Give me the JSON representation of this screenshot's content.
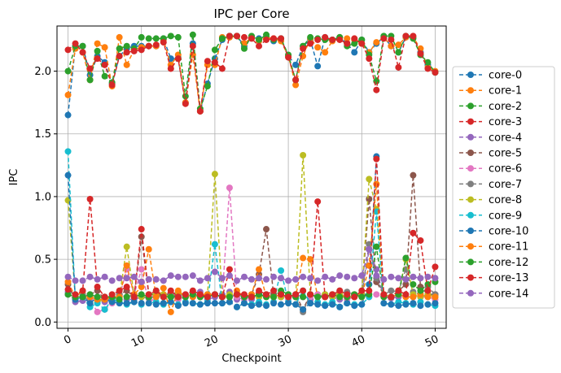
{
  "chart_data": {
    "type": "line",
    "title": "IPC per Core",
    "xlabel": "Checkpoint",
    "ylabel": "IPC",
    "xlim": [
      -1.5,
      51.5
    ],
    "ylim": [
      -0.05,
      2.36
    ],
    "xticks": [
      0,
      10,
      20,
      30,
      40,
      50
    ],
    "yticks": [
      0.0,
      0.5,
      1.0,
      1.5,
      2.0
    ],
    "x_tick_rotation_deg": 25,
    "grid": true,
    "legend_position": "outside-right",
    "marker": "circle",
    "line_style": "dashed",
    "x": [
      0,
      1,
      2,
      3,
      4,
      5,
      6,
      7,
      8,
      9,
      10,
      11,
      12,
      13,
      14,
      15,
      16,
      17,
      18,
      19,
      20,
      21,
      22,
      23,
      24,
      25,
      26,
      27,
      28,
      29,
      30,
      31,
      32,
      33,
      34,
      35,
      36,
      37,
      38,
      39,
      40,
      41,
      42,
      43,
      44,
      45,
      46,
      47,
      48,
      49,
      50
    ],
    "series": [
      {
        "name": "core-0",
        "color": "#1f77b4",
        "values": [
          1.65,
          2.2,
          2.2,
          1.97,
          2.12,
          2.07,
          1.9,
          2.12,
          2.18,
          2.2,
          2.2,
          2.2,
          2.2,
          2.26,
          2.1,
          2.1,
          1.75,
          2.22,
          1.68,
          1.9,
          2.1,
          2.25,
          2.28,
          2.28,
          2.2,
          2.27,
          2.26,
          2.27,
          2.24,
          2.26,
          2.12,
          2.05,
          2.2,
          2.25,
          2.04,
          2.27,
          2.25,
          2.27,
          2.22,
          2.15,
          2.25,
          2.15,
          2.22,
          2.27,
          2.2,
          2.15,
          2.27,
          2.27,
          2.15,
          2.05,
          1.99
        ]
      },
      {
        "name": "core-1",
        "color": "#ff7f0e",
        "values": [
          1.81,
          2.18,
          2.15,
          1.93,
          2.22,
          2.19,
          1.88,
          2.27,
          2.05,
          2.17,
          2.19,
          2.2,
          2.2,
          2.25,
          2.05,
          2.13,
          1.75,
          2.13,
          1.68,
          2.05,
          2.05,
          2.27,
          2.27,
          2.28,
          2.22,
          2.27,
          2.24,
          2.27,
          2.26,
          2.24,
          2.12,
          1.89,
          2.12,
          2.26,
          2.19,
          2.15,
          2.24,
          2.27,
          2.26,
          2.25,
          2.22,
          2.15,
          2.23,
          2.27,
          2.2,
          2.21,
          2.27,
          2.27,
          2.18,
          2.03,
          2.0
        ]
      },
      {
        "name": "core-2",
        "color": "#2ca02c",
        "values": [
          2.0,
          2.2,
          2.2,
          1.93,
          2.16,
          1.96,
          1.91,
          2.18,
          2.2,
          2.18,
          2.27,
          2.26,
          2.26,
          2.26,
          2.28,
          2.27,
          1.8,
          2.29,
          1.7,
          1.88,
          2.17,
          2.26,
          2.28,
          2.28,
          2.18,
          2.28,
          2.25,
          2.29,
          2.25,
          2.26,
          2.13,
          1.93,
          2.2,
          2.27,
          2.26,
          2.25,
          2.25,
          2.27,
          2.2,
          2.22,
          2.25,
          2.13,
          1.92,
          2.28,
          2.28,
          2.15,
          2.28,
          2.26,
          2.13,
          2.07,
          1.99
        ]
      },
      {
        "name": "core-3",
        "color": "#d62728",
        "values": [
          2.17,
          2.22,
          2.15,
          2.02,
          2.1,
          2.05,
          1.89,
          2.12,
          2.15,
          2.16,
          2.17,
          2.2,
          2.21,
          2.23,
          2.02,
          2.1,
          1.74,
          2.2,
          1.68,
          2.08,
          2.07,
          2.02,
          2.28,
          2.28,
          2.27,
          2.26,
          2.2,
          2.25,
          2.26,
          2.26,
          2.11,
          1.93,
          2.18,
          2.22,
          2.25,
          2.27,
          2.25,
          2.25,
          2.22,
          2.26,
          2.22,
          2.1,
          1.85,
          2.26,
          2.25,
          2.03,
          2.28,
          2.28,
          2.14,
          2.02,
          1.99
        ]
      },
      {
        "name": "core-4",
        "color": "#9467bd",
        "values": [
          0.24,
          0.16,
          0.17,
          0.18,
          0.2,
          0.16,
          0.19,
          0.21,
          0.18,
          0.18,
          0.2,
          0.19,
          0.2,
          0.2,
          0.22,
          0.21,
          0.22,
          0.2,
          0.24,
          0.18,
          0.2,
          0.22,
          0.24,
          0.18,
          0.2,
          0.18,
          0.23,
          0.2,
          0.22,
          0.2,
          0.2,
          0.22,
          0.2,
          0.18,
          0.22,
          0.2,
          0.2,
          0.18,
          0.2,
          0.22,
          0.2,
          0.58,
          0.42,
          0.2,
          0.19,
          0.2,
          0.2,
          0.2,
          0.2,
          0.22,
          0.22
        ]
      },
      {
        "name": "core-5",
        "color": "#8c564b",
        "values": [
          0.3,
          0.18,
          0.2,
          0.22,
          0.25,
          0.18,
          0.2,
          0.22,
          0.25,
          0.2,
          0.68,
          0.22,
          0.2,
          0.22,
          0.22,
          0.2,
          0.2,
          0.22,
          0.2,
          0.22,
          0.22,
          0.2,
          0.2,
          0.22,
          0.2,
          0.22,
          0.38,
          0.74,
          0.22,
          0.2,
          0.2,
          0.22,
          0.1,
          0.22,
          0.2,
          0.22,
          0.2,
          0.22,
          0.2,
          0.2,
          0.22,
          0.98,
          0.32,
          0.22,
          0.2,
          0.25,
          0.3,
          1.17,
          0.28,
          0.22,
          0.22
        ]
      },
      {
        "name": "core-6",
        "color": "#e377c2",
        "values": [
          0.22,
          0.2,
          0.2,
          0.18,
          0.08,
          0.1,
          0.15,
          0.2,
          0.42,
          0.22,
          0.42,
          0.15,
          0.2,
          0.22,
          0.2,
          0.18,
          0.2,
          0.22,
          0.2,
          0.22,
          0.22,
          0.2,
          1.07,
          0.2,
          0.18,
          0.2,
          0.22,
          0.2,
          0.2,
          0.22,
          0.18,
          0.22,
          0.2,
          0.2,
          0.22,
          0.2,
          0.2,
          0.22,
          0.18,
          0.2,
          0.22,
          0.2,
          0.22,
          0.2,
          0.2,
          0.22,
          0.2,
          0.22,
          0.2,
          0.2,
          0.18
        ]
      },
      {
        "name": "core-7",
        "color": "#7f7f7f",
        "values": [
          0.22,
          0.2,
          0.22,
          0.15,
          0.18,
          0.2,
          0.17,
          0.22,
          0.2,
          0.22,
          0.2,
          0.19,
          0.2,
          0.2,
          0.22,
          0.24,
          0.2,
          0.22,
          0.2,
          0.22,
          0.22,
          0.2,
          0.2,
          0.22,
          0.2,
          0.22,
          0.2,
          0.22,
          0.2,
          0.2,
          0.22,
          0.2,
          0.08,
          0.22,
          0.2,
          0.22,
          0.2,
          0.25,
          0.24,
          0.22,
          0.22,
          0.62,
          0.35,
          0.22,
          0.25,
          0.24,
          0.42,
          0.24,
          0.22,
          0.28,
          0.22
        ]
      },
      {
        "name": "core-8",
        "color": "#bcbd22",
        "values": [
          0.97,
          0.2,
          0.2,
          0.2,
          0.16,
          0.18,
          0.2,
          0.2,
          0.6,
          0.22,
          0.2,
          0.22,
          0.22,
          0.22,
          0.2,
          0.24,
          0.2,
          0.22,
          0.2,
          0.22,
          1.18,
          0.2,
          0.22,
          0.22,
          0.2,
          0.22,
          0.2,
          0.22,
          0.2,
          0.2,
          0.22,
          0.2,
          1.33,
          0.22,
          0.2,
          0.22,
          0.2,
          0.22,
          0.2,
          0.2,
          0.22,
          1.14,
          0.9,
          0.22,
          0.2,
          0.22,
          0.5,
          0.22,
          0.2,
          0.22,
          0.2
        ]
      },
      {
        "name": "core-9",
        "color": "#17becf",
        "values": [
          1.36,
          0.18,
          0.2,
          0.12,
          0.15,
          0.1,
          0.18,
          0.16,
          0.14,
          0.16,
          0.14,
          0.15,
          0.16,
          0.14,
          0.16,
          0.14,
          0.16,
          0.15,
          0.14,
          0.16,
          0.62,
          0.15,
          0.16,
          0.12,
          0.15,
          0.14,
          0.16,
          0.14,
          0.16,
          0.41,
          0.16,
          0.14,
          0.25,
          0.15,
          0.16,
          0.14,
          0.16,
          0.12,
          0.15,
          0.14,
          0.14,
          0.2,
          0.88,
          0.15,
          0.14,
          0.16,
          0.15,
          0.14,
          0.16,
          0.14,
          0.13
        ]
      },
      {
        "name": "core-10",
        "color": "#1f77b4",
        "values": [
          1.17,
          0.18,
          0.2,
          0.15,
          0.2,
          0.18,
          0.16,
          0.15,
          0.15,
          0.16,
          0.15,
          0.15,
          0.14,
          0.15,
          0.16,
          0.13,
          0.15,
          0.15,
          0.14,
          0.15,
          0.15,
          0.15,
          0.16,
          0.12,
          0.15,
          0.13,
          0.14,
          0.13,
          0.15,
          0.14,
          0.15,
          0.14,
          0.1,
          0.15,
          0.14,
          0.13,
          0.14,
          0.12,
          0.15,
          0.13,
          0.14,
          0.3,
          1.32,
          0.15,
          0.14,
          0.13,
          0.14,
          0.15,
          0.13,
          0.14,
          0.15
        ]
      },
      {
        "name": "core-11",
        "color": "#ff7f0e",
        "values": [
          0.32,
          0.2,
          0.25,
          0.2,
          0.18,
          0.18,
          0.2,
          0.2,
          0.45,
          0.22,
          0.28,
          0.58,
          0.2,
          0.27,
          0.08,
          0.25,
          0.2,
          0.2,
          0.22,
          0.22,
          0.22,
          0.2,
          0.2,
          0.25,
          0.2,
          0.22,
          0.42,
          0.2,
          0.2,
          0.22,
          0.2,
          0.2,
          0.51,
          0.5,
          0.2,
          0.2,
          0.22,
          0.2,
          0.2,
          0.22,
          0.2,
          0.45,
          1.1,
          0.2,
          0.2,
          0.22,
          0.2,
          0.2,
          0.22,
          0.2,
          0.2
        ]
      },
      {
        "name": "core-12",
        "color": "#2ca02c",
        "values": [
          0.22,
          0.2,
          0.2,
          0.22,
          0.2,
          0.2,
          0.2,
          0.18,
          0.2,
          0.2,
          0.22,
          0.2,
          0.25,
          0.2,
          0.2,
          0.2,
          0.2,
          0.22,
          0.2,
          0.2,
          0.22,
          0.2,
          0.2,
          0.22,
          0.2,
          0.2,
          0.22,
          0.2,
          0.2,
          0.25,
          0.22,
          0.2,
          0.2,
          0.22,
          0.2,
          0.2,
          0.22,
          0.2,
          0.2,
          0.22,
          0.2,
          0.22,
          0.6,
          0.2,
          0.2,
          0.22,
          0.51,
          0.3,
          0.25,
          0.3,
          0.32
        ]
      },
      {
        "name": "core-13",
        "color": "#d62728",
        "values": [
          0.26,
          0.22,
          0.25,
          0.98,
          0.28,
          0.2,
          0.22,
          0.25,
          0.28,
          0.2,
          0.74,
          0.22,
          0.25,
          0.2,
          0.25,
          0.2,
          0.22,
          0.25,
          0.22,
          0.2,
          0.22,
          0.2,
          0.42,
          0.22,
          0.22,
          0.2,
          0.25,
          0.22,
          0.25,
          0.22,
          0.2,
          0.22,
          0.25,
          0.22,
          0.96,
          0.2,
          0.22,
          0.25,
          0.22,
          0.2,
          0.25,
          0.25,
          1.3,
          0.22,
          0.2,
          0.25,
          0.22,
          0.71,
          0.65,
          0.25,
          0.44
        ]
      },
      {
        "name": "core-14",
        "color": "#9467bd",
        "values": [
          0.36,
          0.33,
          0.33,
          0.36,
          0.34,
          0.36,
          0.33,
          0.35,
          0.35,
          0.36,
          0.32,
          0.34,
          0.34,
          0.33,
          0.37,
          0.36,
          0.36,
          0.37,
          0.33,
          0.35,
          0.4,
          0.35,
          0.37,
          0.33,
          0.36,
          0.34,
          0.35,
          0.34,
          0.36,
          0.35,
          0.33,
          0.34,
          0.36,
          0.35,
          0.33,
          0.36,
          0.34,
          0.37,
          0.36,
          0.35,
          0.37,
          0.58,
          0.37,
          0.34,
          0.36,
          0.35,
          0.34,
          0.36,
          0.35,
          0.36,
          0.35
        ]
      }
    ]
  }
}
